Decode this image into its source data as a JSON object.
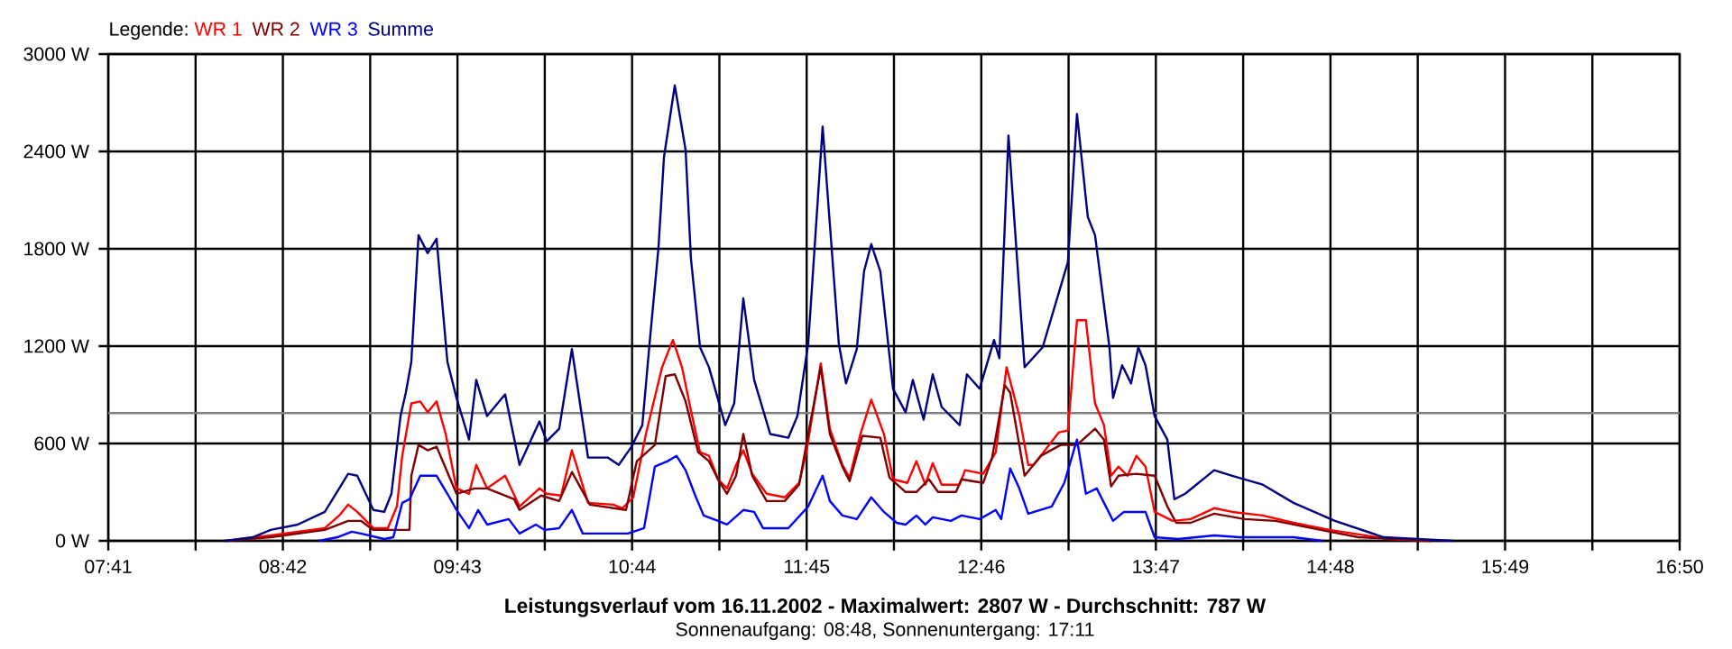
{
  "chart_data": {
    "type": "line",
    "title": "Leistungsverlauf vom 16.11.2002 - Maximalwert: 2807 W - Durchschnitt: 787 W",
    "subtitle": "Sonnenaufgang: 08:48, Sonnenuntergang: 17:11",
    "legend_title": "Legende:",
    "legend": "top left",
    "grid": true,
    "marker": "none",
    "line_style": "solid",
    "xlim": [
      7.6833,
      16.8333
    ],
    "ylim": [
      0,
      3000
    ],
    "xticks": [
      {
        "value": 7.6833,
        "label": "07:41"
      },
      {
        "value": 8.1917,
        "label": null
      },
      {
        "value": 8.7,
        "label": "08:42"
      },
      {
        "value": 9.2083,
        "label": null
      },
      {
        "value": 9.7167,
        "label": "09:43"
      },
      {
        "value": 10.225,
        "label": null
      },
      {
        "value": 10.7333,
        "label": "10:44"
      },
      {
        "value": 11.2417,
        "label": null
      },
      {
        "value": 11.75,
        "label": "11:45"
      },
      {
        "value": 12.2583,
        "label": null
      },
      {
        "value": 12.7667,
        "label": "12:46"
      },
      {
        "value": 13.275,
        "label": null
      },
      {
        "value": 13.7833,
        "label": "13:47"
      },
      {
        "value": 14.2917,
        "label": null
      },
      {
        "value": 14.8,
        "label": "14:48"
      },
      {
        "value": 15.3083,
        "label": null
      },
      {
        "value": 15.8167,
        "label": "15:49"
      },
      {
        "value": 16.325,
        "label": null
      },
      {
        "value": 16.8333,
        "label": "16:50"
      }
    ],
    "yticks": [
      {
        "value": 0,
        "label": "0 W"
      },
      {
        "value": 600,
        "label": "600 W"
      },
      {
        "value": 1200,
        "label": "1200 W"
      },
      {
        "value": 1800,
        "label": "1800 W"
      },
      {
        "value": 2400,
        "label": "2400 W"
      },
      {
        "value": 3000,
        "label": "3000 W"
      }
    ],
    "ref_lines": [
      {
        "axis": "y",
        "value": 787,
        "color": "#808080"
      }
    ],
    "series": [
      {
        "name": "WR 1",
        "color": "#ff0000",
        "x": [
          8.366,
          8.629,
          8.944,
          9.028,
          9.08,
          9.133,
          9.227,
          9.311,
          9.364,
          9.395,
          9.448,
          9.5,
          9.543,
          9.595,
          9.648,
          9.711,
          9.784,
          9.826,
          9.889,
          9.994,
          10.078,
          10.194,
          10.236,
          10.32,
          10.383,
          10.477,
          10.624,
          10.677,
          10.74,
          10.814,
          10.908,
          10.971,
          11.024,
          11.076,
          11.129,
          11.181,
          11.234,
          11.286,
          11.339,
          11.381,
          11.433,
          11.517,
          11.622,
          11.706,
          11.748,
          11.832,
          11.885,
          11.958,
          12.0,
          12.063,
          12.126,
          12.2,
          12.253,
          12.336,
          12.389,
          12.441,
          12.484,
          12.536,
          12.641,
          12.672,
          12.778,
          12.851,
          12.914,
          12.988,
          13.04,
          13.072,
          13.219,
          13.271,
          13.324,
          13.376,
          13.429,
          13.481,
          13.523,
          13.565,
          13.618,
          13.67,
          13.723,
          13.776,
          13.881,
          13.986,
          14.123,
          14.228,
          14.406,
          14.585,
          14.795,
          15.141,
          15.383
        ],
        "values": [
          0,
          33,
          78,
          156,
          223,
          178,
          78,
          78,
          212,
          524,
          847,
          859,
          792,
          859,
          658,
          323,
          290,
          468,
          323,
          401,
          212,
          323,
          290,
          279,
          558,
          234,
          223,
          201,
          268,
          658,
          1070,
          1238,
          1070,
          803,
          546,
          524,
          379,
          323,
          468,
          558,
          413,
          290,
          268,
          357,
          546,
          1093,
          691,
          468,
          390,
          658,
          870,
          658,
          379,
          357,
          491,
          346,
          479,
          346,
          346,
          435,
          413,
          546,
          1070,
          769,
          468,
          468,
          669,
          680,
          1360,
          1360,
          847,
          713,
          401,
          457,
          401,
          524,
          457,
          178,
          123,
          134,
          201,
          178,
          156,
          111,
          67,
          11,
          0
        ]
      },
      {
        "name": "WR 2",
        "color": "#800000",
        "x": [
          8.366,
          8.629,
          8.944,
          9.08,
          9.154,
          9.227,
          9.437,
          9.448,
          9.49,
          9.543,
          9.595,
          9.711,
          9.816,
          9.889,
          10.047,
          10.078,
          10.204,
          10.309,
          10.383,
          10.488,
          10.698,
          10.761,
          10.866,
          10.929,
          10.982,
          11.045,
          11.118,
          11.181,
          11.234,
          11.286,
          11.339,
          11.381,
          11.433,
          11.517,
          11.622,
          11.706,
          11.759,
          11.832,
          11.885,
          11.958,
          12.0,
          12.074,
          12.179,
          12.232,
          12.326,
          12.389,
          12.462,
          12.515,
          12.62,
          12.651,
          12.778,
          12.83,
          12.904,
          12.935,
          13.019,
          13.114,
          13.229,
          13.324,
          13.429,
          13.481,
          13.523,
          13.565,
          13.67,
          13.776,
          13.85,
          13.902,
          13.986,
          14.123,
          14.3,
          14.48,
          14.69,
          14.963,
          15.173,
          15.383
        ],
        "values": [
          0,
          22,
          67,
          123,
          123,
          67,
          67,
          401,
          591,
          558,
          580,
          290,
          323,
          323,
          256,
          190,
          279,
          245,
          424,
          223,
          190,
          491,
          591,
          1015,
          1026,
          859,
          546,
          491,
          379,
          290,
          401,
          658,
          401,
          245,
          245,
          346,
          658,
          1070,
          658,
          457,
          368,
          647,
          635,
          390,
          301,
          301,
          379,
          301,
          301,
          379,
          357,
          513,
          959,
          914,
          401,
          524,
          591,
          591,
          691,
          624,
          335,
          401,
          413,
          401,
          212,
          111,
          111,
          167,
          134,
          123,
          78,
          22,
          11,
          0
        ]
      },
      {
        "name": "WR 3",
        "color": "#0000ff",
        "x": [
          8.912,
          9.017,
          9.101,
          9.154,
          9.29,
          9.343,
          9.395,
          9.437,
          9.5,
          9.595,
          9.658,
          9.711,
          9.784,
          9.837,
          9.889,
          10.015,
          10.078,
          10.173,
          10.225,
          10.309,
          10.383,
          10.446,
          10.709,
          10.803,
          10.866,
          10.94,
          10.992,
          11.045,
          11.097,
          11.15,
          11.234,
          11.286,
          11.381,
          11.444,
          11.496,
          11.643,
          11.759,
          11.843,
          11.885,
          11.958,
          12.042,
          12.126,
          12.2,
          12.274,
          12.326,
          12.389,
          12.441,
          12.484,
          12.589,
          12.651,
          12.757,
          12.851,
          12.883,
          12.935,
          12.988,
          13.04,
          13.177,
          13.25,
          13.324,
          13.376,
          13.439,
          13.534,
          13.597,
          13.723,
          13.776,
          13.912,
          14.123,
          14.27,
          14.585,
          14.752
        ],
        "values": [
          0,
          22,
          56,
          45,
          11,
          22,
          234,
          256,
          401,
          401,
          290,
          190,
          78,
          190,
          100,
          134,
          45,
          100,
          67,
          78,
          190,
          45,
          45,
          78,
          457,
          491,
          524,
          435,
          290,
          156,
          123,
          100,
          190,
          178,
          78,
          78,
          212,
          401,
          245,
          156,
          134,
          268,
          178,
          111,
          100,
          156,
          100,
          145,
          123,
          156,
          134,
          190,
          134,
          446,
          323,
          167,
          212,
          357,
          624,
          290,
          323,
          123,
          178,
          178,
          22,
          11,
          33,
          22,
          22,
          0
        ]
      },
      {
        "name": "Summe",
        "color": "#000080",
        "x": [
          8.366,
          8.524,
          8.629,
          8.786,
          8.944,
          9.028,
          9.08,
          9.133,
          9.227,
          9.29,
          9.332,
          9.385,
          9.416,
          9.448,
          9.49,
          9.543,
          9.595,
          9.658,
          9.711,
          9.784,
          9.826,
          9.889,
          9.994,
          10.078,
          10.194,
          10.236,
          10.309,
          10.383,
          10.477,
          10.593,
          10.656,
          10.73,
          10.793,
          10.835,
          10.887,
          10.919,
          10.982,
          11.045,
          11.076,
          11.129,
          11.181,
          11.276,
          11.328,
          11.381,
          11.444,
          11.538,
          11.643,
          11.696,
          11.759,
          11.843,
          11.874,
          11.937,
          11.979,
          12.042,
          12.084,
          12.126,
          12.179,
          12.253,
          12.326,
          12.368,
          12.431,
          12.484,
          12.536,
          12.641,
          12.683,
          12.757,
          12.841,
          12.872,
          12.925,
          13.019,
          13.124,
          13.271,
          13.324,
          13.387,
          13.429,
          13.513,
          13.534,
          13.587,
          13.639,
          13.681,
          13.723,
          13.776,
          13.85,
          13.891,
          13.954,
          14.123,
          14.228,
          14.406,
          14.585,
          14.826,
          15.11,
          15.509
        ],
        "values": [
          0,
          22,
          67,
          100,
          178,
          323,
          413,
          401,
          190,
          178,
          290,
          769,
          914,
          1104,
          1884,
          1773,
          1862,
          1104,
          881,
          624,
          992,
          769,
          903,
          468,
          736,
          613,
          691,
          1182,
          513,
          513,
          468,
          580,
          713,
          1215,
          1806,
          2364,
          2807,
          2408,
          1739,
          1193,
          1070,
          713,
          847,
          1494,
          992,
          658,
          635,
          769,
          1215,
          2553,
          2107,
          1215,
          970,
          1182,
          1661,
          1829,
          1661,
          937,
          792,
          992,
          747,
          1026,
          825,
          713,
          1026,
          937,
          1238,
          1126,
          2498,
          1070,
          1193,
          1717,
          2631,
          1996,
          1884,
          1193,
          881,
          1082,
          970,
          1193,
          1082,
          769,
          624,
          256,
          290,
          435,
          401,
          346,
          234,
          123,
          22,
          0
        ]
      }
    ]
  }
}
